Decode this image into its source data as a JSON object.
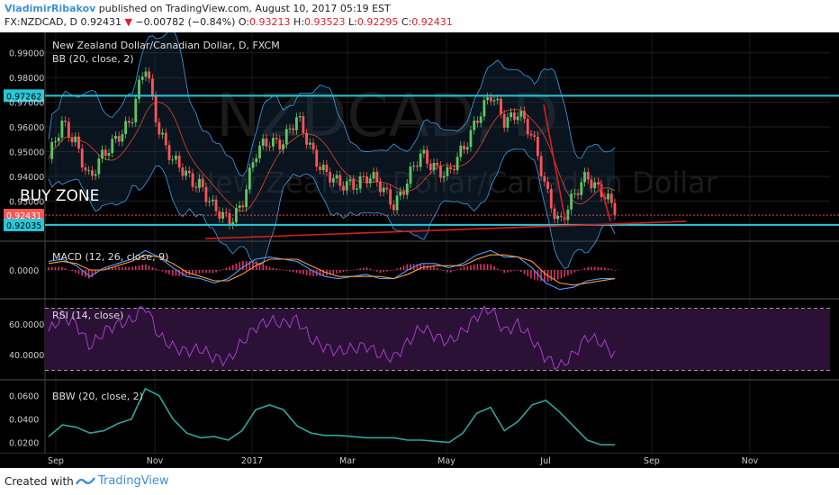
{
  "header": {
    "author": "VladimirRibakov",
    "published_text": "published on TradingView.com, August 10, 2017 05:19 EST",
    "symbol": "FX:NZDCAD, D",
    "last": "0.92431",
    "change_arrow": "▼",
    "change": "−0.00782 (−0.84%)",
    "o_label": "O:",
    "o_val": "0.93213",
    "h_label": "H:",
    "h_val": "0.93523",
    "l_label": "L:",
    "l_val": "0.92295",
    "c_label": "C:",
    "c_val": "0.92431"
  },
  "footer": {
    "created_with": "Created with",
    "brand": "TradingView"
  },
  "colors": {
    "background": "#000000",
    "up": "#62c462",
    "down": "#ff5555",
    "support_line": "#27c9d9",
    "trend_line": "#d81f1f",
    "bb_band": "#3aa0e8",
    "macd_line": "#4aa0ff",
    "signal_line": "#ff9a3c",
    "rsi_line": "#a63ec8",
    "bbw_line": "#2aa79b"
  },
  "chart_data": [
    {
      "type": "candlestick",
      "title": "New Zealand Dollar/Canadian Dollar, D, FXCM",
      "indicator": "BB (20, close, 2)",
      "watermark": "NZDCAD, D",
      "watermark_sub": "New Zealand Dollar/Canadian Dollar",
      "annotation": "BUY ZONE",
      "ylim": [
        0.9145,
        0.9975
      ],
      "y_ticks": [
        "0.99000",
        "0.98000",
        "0.97000",
        "0.96000",
        "0.95000",
        "0.94000",
        "0.93000"
      ],
      "price_tags": [
        {
          "label": "0.97262",
          "value": 0.97262,
          "color": "#27c9d9"
        },
        {
          "label": "0.92431",
          "value": 0.92431,
          "color": "#ff5555"
        },
        {
          "label": "0.92035",
          "value": 0.92035,
          "color": "#27c9d9"
        }
      ],
      "trend_line": [
        [
          "2017-10-09",
          0.9148
        ],
        [
          "2017-07-28",
          0.9218
        ]
      ],
      "close_series": [
        [
          "Sep 1",
          0.947
        ],
        [
          "Sep 10",
          0.96
        ],
        [
          "Sep 20",
          0.955
        ],
        [
          "Sep 30",
          0.938
        ],
        [
          "Oct 10",
          0.948
        ],
        [
          "Oct 20",
          0.958
        ],
        [
          "Oct 28",
          0.962
        ],
        [
          "Nov 3",
          0.985
        ],
        [
          "Nov 10",
          0.96
        ],
        [
          "Nov 20",
          0.945
        ],
        [
          "Dec 1",
          0.94
        ],
        [
          "Dec 10",
          0.938
        ],
        [
          "Dec 20",
          0.925
        ],
        [
          "Dec 30",
          0.922
        ],
        [
          "Jan 10",
          0.93
        ],
        [
          "Jan 20",
          0.948
        ],
        [
          "Jan 28",
          0.955
        ],
        [
          "Feb 5",
          0.955
        ],
        [
          "Feb 15",
          0.962
        ],
        [
          "Feb 25",
          0.952
        ],
        [
          "Mar 5",
          0.942
        ],
        [
          "Mar 15",
          0.935
        ],
        [
          "Mar 25",
          0.938
        ],
        [
          "Apr 5",
          0.94
        ],
        [
          "Apr 15",
          0.935
        ],
        [
          "Apr 25",
          0.93
        ],
        [
          "May 1",
          0.938
        ],
        [
          "May 10",
          0.948
        ],
        [
          "May 20",
          0.945
        ],
        [
          "May 30",
          0.94
        ],
        [
          "Jun 5",
          0.95
        ],
        [
          "Jun 12",
          0.965
        ],
        [
          "Jun 18",
          0.972
        ],
        [
          "Jun 25",
          0.962
        ],
        [
          "Jul 1",
          0.968
        ],
        [
          "Jul 5",
          0.955
        ],
        [
          "Jul 12",
          0.935
        ],
        [
          "Jul 18",
          0.922
        ],
        [
          "Jul 22",
          0.93
        ],
        [
          "Jul 28",
          0.941
        ],
        [
          "Aug 3",
          0.935
        ],
        [
          "Aug 10",
          0.9243
        ]
      ]
    },
    {
      "type": "line",
      "title": "MACD (12, 26, close, 9)",
      "y_ticks": [
        "0.0000"
      ],
      "series": [
        {
          "values": [
            0.4,
            0.5,
            0.2,
            -0.3,
            0.1,
            0.3,
            0.5,
            0.9,
            0.6,
            0.1,
            -0.3,
            -0.4,
            -0.6,
            -0.4,
            0.1,
            0.5,
            0.6,
            0.5,
            0.4,
            0.0,
            -0.3,
            -0.4,
            -0.3,
            -0.2,
            -0.4,
            -0.4,
            0.0,
            0.3,
            0.3,
            0.1,
            0.3,
            0.7,
            0.9,
            0.6,
            0.6,
            0.1,
            -0.6,
            -0.9,
            -0.8,
            -0.5,
            -0.4,
            -0.4
          ]
        }
      ],
      "signal": [
        0.3,
        0.4,
        0.3,
        0.0,
        0.0,
        0.2,
        0.4,
        0.7,
        0.6,
        0.3,
        -0.1,
        -0.3,
        -0.5,
        -0.5,
        -0.2,
        0.2,
        0.5,
        0.5,
        0.5,
        0.2,
        -0.1,
        -0.3,
        -0.3,
        -0.3,
        -0.3,
        -0.4,
        -0.2,
        0.1,
        0.2,
        0.2,
        0.2,
        0.5,
        0.7,
        0.7,
        0.6,
        0.4,
        -0.2,
        -0.6,
        -0.7,
        -0.6,
        -0.5,
        -0.4
      ]
    },
    {
      "type": "line",
      "title": "RSI (14, close)",
      "ylim": [
        25,
        75
      ],
      "y_ticks": [
        "60.0000",
        "40.0000"
      ],
      "bands": [
        70,
        30
      ],
      "values": [
        55,
        65,
        60,
        45,
        55,
        60,
        62,
        72,
        52,
        45,
        42,
        44,
        38,
        36,
        48,
        58,
        62,
        60,
        63,
        50,
        45,
        42,
        44,
        46,
        40,
        38,
        48,
        58,
        52,
        48,
        55,
        65,
        70,
        55,
        60,
        50,
        38,
        32,
        40,
        52,
        48,
        40
      ]
    },
    {
      "type": "area",
      "title": "BBW (20, close, 2)",
      "ylim": [
        0.012,
        0.072
      ],
      "y_ticks": [
        "0.0600",
        "0.0400",
        "0.0200"
      ],
      "values": [
        0.025,
        0.035,
        0.033,
        0.028,
        0.03,
        0.036,
        0.04,
        0.066,
        0.06,
        0.04,
        0.028,
        0.024,
        0.025,
        0.022,
        0.03,
        0.048,
        0.052,
        0.048,
        0.034,
        0.028,
        0.026,
        0.026,
        0.025,
        0.024,
        0.024,
        0.024,
        0.022,
        0.022,
        0.021,
        0.02,
        0.028,
        0.045,
        0.05,
        0.03,
        0.038,
        0.052,
        0.056,
        0.046,
        0.034,
        0.022,
        0.018,
        0.018
      ]
    },
    {
      "type": "axis",
      "x_ticks": [
        "Sep",
        "Nov",
        "2017",
        "Mar",
        "May",
        "Jul",
        "Sep",
        "Nov"
      ]
    }
  ]
}
